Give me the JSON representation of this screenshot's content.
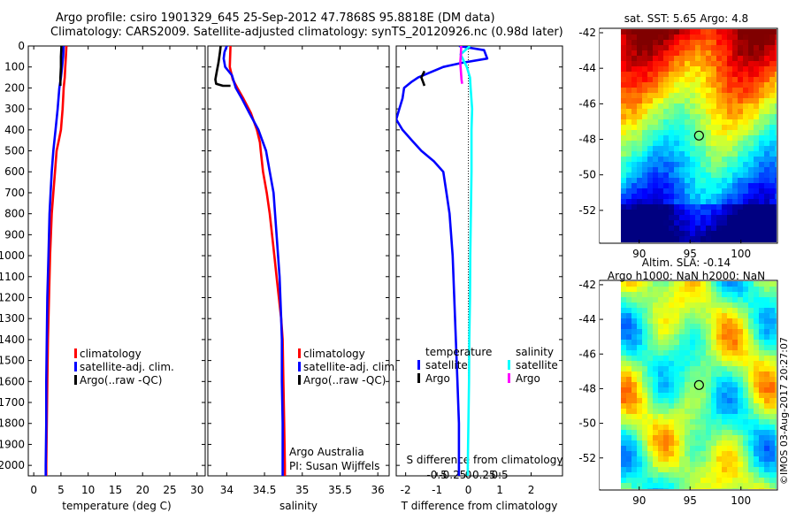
{
  "title": {
    "line1": "Argo profile: csiro 1901329_645 25-Sep-2012 47.7868S 95.8818E (DM data)",
    "line2": "Climatology: CARS2009. Satellite-adjusted climatology: synTS_20120926.nc (0.98d later)"
  },
  "copyright": "©IMOS 03-Aug-2017 20:27:07",
  "colors": {
    "climatology": "#ff0000",
    "satellite": "#0000ff",
    "argo": "#000000",
    "sal_satellite": "#00ffff",
    "sal_argo": "#ff00ff"
  },
  "chart_data": [
    {
      "id": "temperature",
      "type": "line",
      "xlabel": "temperature (deg C)",
      "ylabel": "",
      "xlim": [
        -1,
        31.5
      ],
      "ylim": [
        2050,
        0
      ],
      "xticks": [
        0,
        5,
        10,
        15,
        20,
        25,
        30
      ],
      "yticks": [
        0,
        100,
        200,
        300,
        400,
        500,
        600,
        700,
        800,
        900,
        1000,
        1100,
        1200,
        1300,
        1400,
        1500,
        1600,
        1700,
        1800,
        1900,
        2000
      ],
      "legend": [
        "climatology",
        "satellite-adj. clim.",
        "Argo(..raw -QC)"
      ],
      "series": [
        {
          "name": "climatology",
          "color": "#ff0000",
          "points": [
            [
              6.0,
              0
            ],
            [
              5.9,
              50
            ],
            [
              5.8,
              100
            ],
            [
              5.7,
              150
            ],
            [
              5.5,
              200
            ],
            [
              5.3,
              300
            ],
            [
              5.0,
              400
            ],
            [
              4.6,
              450
            ],
            [
              4.2,
              500
            ],
            [
              3.9,
              600
            ],
            [
              3.6,
              700
            ],
            [
              3.3,
              800
            ],
            [
              3.0,
              1000
            ],
            [
              2.8,
              1200
            ],
            [
              2.6,
              1400
            ],
            [
              2.5,
              1600
            ],
            [
              2.4,
              1800
            ],
            [
              2.3,
              2000
            ],
            [
              2.3,
              2050
            ]
          ]
        },
        {
          "name": "satellite-adj. clim.",
          "color": "#0000ff",
          "points": [
            [
              5.5,
              0
            ],
            [
              5.4,
              50
            ],
            [
              5.2,
              100
            ],
            [
              5.0,
              150
            ],
            [
              4.7,
              200
            ],
            [
              4.4,
              300
            ],
            [
              4.0,
              400
            ],
            [
              3.6,
              500
            ],
            [
              3.3,
              600
            ],
            [
              3.1,
              700
            ],
            [
              2.9,
              800
            ],
            [
              2.7,
              1000
            ],
            [
              2.5,
              1200
            ],
            [
              2.4,
              1400
            ],
            [
              2.3,
              1600
            ],
            [
              2.3,
              1800
            ],
            [
              2.2,
              2000
            ],
            [
              2.2,
              2050
            ]
          ]
        },
        {
          "name": "Argo(..raw -QC)",
          "color": "#000000",
          "points": [
            [
              5.1,
              0
            ],
            [
              5.0,
              50
            ],
            [
              5.0,
              100
            ],
            [
              4.9,
              150
            ],
            [
              4.9,
              190
            ]
          ]
        }
      ]
    },
    {
      "id": "salinity",
      "type": "line",
      "xlabel": "salinity",
      "ylabel": "",
      "xlim": [
        33.75,
        36.15
      ],
      "ylim": [
        2050,
        0
      ],
      "xticks": [
        34,
        34.5,
        35,
        35.5,
        36
      ],
      "legend": [
        "climatology",
        "satellite-adj. clim.",
        "Argo(..raw -QC)"
      ],
      "annotation": [
        "Argo Australia",
        "PI: Susan Wijffels"
      ],
      "series": [
        {
          "name": "climatology",
          "color": "#ff0000",
          "points": [
            [
              34.05,
              0
            ],
            [
              34.04,
              100
            ],
            [
              34.08,
              160
            ],
            [
              34.14,
              200
            ],
            [
              34.22,
              250
            ],
            [
              34.32,
              320
            ],
            [
              34.4,
              400
            ],
            [
              34.44,
              460
            ],
            [
              34.45,
              500
            ],
            [
              34.48,
              600
            ],
            [
              34.53,
              700
            ],
            [
              34.57,
              800
            ],
            [
              34.6,
              900
            ],
            [
              34.63,
              1000
            ],
            [
              34.66,
              1100
            ],
            [
              34.69,
              1200
            ],
            [
              34.72,
              1300
            ],
            [
              34.74,
              1400
            ],
            [
              34.75,
              1600
            ],
            [
              34.76,
              1800
            ],
            [
              34.77,
              2000
            ],
            [
              34.77,
              2050
            ]
          ]
        },
        {
          "name": "satellite-adj. clim.",
          "color": "#0000ff",
          "points": [
            [
              34.0,
              0
            ],
            [
              33.97,
              30
            ],
            [
              33.96,
              60
            ],
            [
              33.98,
              100
            ],
            [
              34.07,
              140
            ],
            [
              34.12,
              200
            ],
            [
              34.2,
              250
            ],
            [
              34.3,
              320
            ],
            [
              34.42,
              400
            ],
            [
              34.52,
              500
            ],
            [
              34.57,
              600
            ],
            [
              34.62,
              700
            ],
            [
              34.64,
              800
            ],
            [
              34.66,
              900
            ],
            [
              34.68,
              1000
            ],
            [
              34.7,
              1100
            ],
            [
              34.71,
              1200
            ],
            [
              34.72,
              1300
            ],
            [
              34.73,
              1400
            ],
            [
              34.73,
              1600
            ],
            [
              34.74,
              1800
            ],
            [
              34.74,
              2000
            ],
            [
              34.74,
              2050
            ]
          ]
        },
        {
          "name": "Argo(..raw -QC)",
          "color": "#000000",
          "points": [
            [
              33.92,
              0
            ],
            [
              33.91,
              30
            ],
            [
              33.89,
              80
            ],
            [
              33.87,
              120
            ],
            [
              33.85,
              160
            ],
            [
              33.86,
              180
            ],
            [
              33.95,
              190
            ],
            [
              34.05,
              190
            ]
          ]
        }
      ]
    },
    {
      "id": "difference",
      "type": "line",
      "xlabel": "T difference from climatology",
      "xlabel_top": "S difference from climatology",
      "xlim": [
        -2.3,
        3.0
      ],
      "xticks": [
        -2,
        -1,
        0,
        1,
        2
      ],
      "xticks_top": [
        -0.5,
        -0.25,
        0,
        0.25,
        0.5
      ],
      "ylim": [
        2050,
        0
      ],
      "legend_headers": [
        "temperature",
        "salinity"
      ],
      "legend": [
        "satellite",
        "Argo",
        "satellite",
        "Argo"
      ],
      "series": [
        {
          "name": "temperature satellite",
          "color": "#0000ff",
          "points": [
            [
              -0.3,
              0
            ],
            [
              0.5,
              20
            ],
            [
              0.6,
              60
            ],
            [
              -0.2,
              80
            ],
            [
              -0.8,
              100
            ],
            [
              -1.6,
              150
            ],
            [
              -1.8,
              170
            ],
            [
              -2.05,
              200
            ],
            [
              -2.1,
              250
            ],
            [
              -2.2,
              300
            ],
            [
              -2.3,
              350
            ],
            [
              -2.1,
              400
            ],
            [
              -1.8,
              450
            ],
            [
              -1.5,
              500
            ],
            [
              -1.1,
              550
            ],
            [
              -0.8,
              600
            ],
            [
              -0.7,
              700
            ],
            [
              -0.6,
              800
            ],
            [
              -0.5,
              1000
            ],
            [
              -0.45,
              1200
            ],
            [
              -0.4,
              1400
            ],
            [
              -0.35,
              1600
            ],
            [
              -0.3,
              1800
            ],
            [
              -0.3,
              2000
            ],
            [
              -0.3,
              2050
            ]
          ]
        },
        {
          "name": "temperature Argo",
          "color": "#000000",
          "points": [
            [
              -1.4,
              120
            ],
            [
              -1.5,
              150
            ],
            [
              -1.45,
              170
            ],
            [
              -1.4,
              190
            ]
          ]
        },
        {
          "name": "salinity satellite",
          "color": "#00ffff",
          "points": [
            [
              0.05,
              0
            ],
            [
              -0.25,
              40
            ],
            [
              -0.15,
              70
            ],
            [
              -0.05,
              100
            ],
            [
              0.05,
              150
            ],
            [
              0.07,
              200
            ],
            [
              0.12,
              300
            ],
            [
              0.1,
              400
            ],
            [
              0.1,
              600
            ],
            [
              0.08,
              800
            ],
            [
              0.06,
              1000
            ],
            [
              0.05,
              1200
            ],
            [
              0.03,
              1400
            ],
            [
              0.02,
              1600
            ],
            [
              0.0,
              1800
            ],
            [
              -0.02,
              2000
            ],
            [
              -0.02,
              2050
            ]
          ]
        },
        {
          "name": "salinity Argo",
          "color": "#ff00ff",
          "points": [
            [
              -0.23,
              0
            ],
            [
              -0.24,
              40
            ],
            [
              -0.26,
              80
            ],
            [
              -0.24,
              120
            ],
            [
              -0.22,
              160
            ],
            [
              -0.2,
              180
            ]
          ]
        }
      ]
    },
    {
      "id": "sst_map",
      "type": "heatmap",
      "title": "sat. SST: 5.65  Argo: 4.8",
      "xlim": [
        88.2,
        103.5
      ],
      "ylim": [
        -53.8,
        -41.8
      ],
      "xticks": [
        90,
        95,
        100
      ],
      "yticks": [
        -42,
        -44,
        -46,
        -48,
        -50,
        -52
      ],
      "marker": [
        95.88,
        -47.79
      ]
    },
    {
      "id": "sla_map",
      "type": "heatmap",
      "title": "Altim. SLA: -0.14",
      "subtitle": "Argo h1000: NaN  h2000: NaN",
      "xlim": [
        88.2,
        103.5
      ],
      "ylim": [
        -53.8,
        -41.8
      ],
      "xticks": [
        90,
        95,
        100
      ],
      "yticks": [
        -42,
        -44,
        -46,
        -48,
        -50,
        -52
      ],
      "marker": [
        95.88,
        -47.79
      ]
    }
  ]
}
